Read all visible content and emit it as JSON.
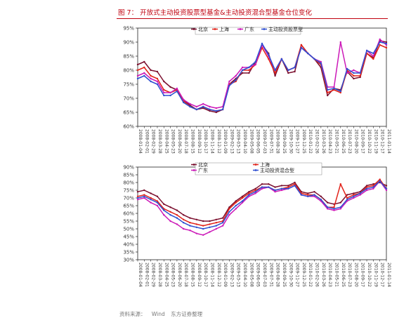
{
  "figure": {
    "title": "图 7：  开放式主动投资股票型基金&主动投资混合型基金仓位变化",
    "source_label": "资料来源：",
    "source_items": [
      "Wind",
      "东方证券整理"
    ]
  },
  "chart_data": [
    {
      "type": "line",
      "title": "",
      "ylim": [
        60,
        95
      ],
      "y_ticks": [
        "95%",
        "90%",
        "85%",
        "80%",
        "75%",
        "70%",
        "65%",
        "60%"
      ],
      "x_ticks": [
        "2008-01-04",
        "2008-02-01",
        "2008-02-29",
        "2008-03-28",
        "2008-04-25",
        "2008-05-23",
        "2008-06-20",
        "2008-07-18",
        "2008-08-15",
        "2008-09-12",
        "2008-10-17",
        "2008-11-14",
        "2008-12-12",
        "2009-01-09",
        "2009-02-13",
        "2009-03-13",
        "2009-04-10",
        "2009-05-08",
        "2009-06-05",
        "2009-07-03",
        "2009-07-31",
        "2009-08-28",
        "2009-09-25",
        "2009-10-30",
        "2009-11-27",
        "2009-12-25",
        "2010-01-22",
        "2010-02-26",
        "2010-03-26",
        "2010-04-23",
        "2010-05-21",
        "2010-06-25",
        "2010-07-23",
        "2010-08-20",
        "2010-09-17",
        "2010-10-22",
        "2010-11-19",
        "2010-12-17",
        "2011-01-14"
      ],
      "grid": false,
      "legend_position": "top",
      "series": [
        {
          "name": "北京",
          "color": "#7b0f2e",
          "values": [
            82,
            83,
            80,
            79.5,
            76,
            74,
            73,
            69.5,
            67.5,
            66,
            66.5,
            65.5,
            65,
            66,
            75,
            77,
            79,
            79,
            83,
            89,
            86,
            78,
            84,
            79,
            79.5,
            89,
            86,
            84,
            81,
            71,
            73.5,
            73,
            79.5,
            77,
            77.5,
            86,
            84.5,
            90.5,
            90
          ]
        },
        {
          "name": "上海",
          "color": "#e2231a",
          "values": [
            80,
            81,
            78,
            77,
            73,
            72,
            73,
            69,
            67,
            66,
            67,
            66,
            65.5,
            66,
            75,
            76,
            80,
            80,
            82,
            88,
            84,
            79,
            84,
            80,
            81,
            89,
            86,
            84,
            82,
            72,
            73,
            72,
            80,
            78,
            78,
            86,
            84,
            89,
            88
          ]
        },
        {
          "name": "广东",
          "color": "#cc19b8",
          "values": [
            78,
            79,
            77,
            76,
            72,
            72,
            73.5,
            69.5,
            68,
            67,
            68,
            67,
            66.5,
            67,
            76,
            78,
            81,
            81,
            82,
            89,
            85,
            80,
            84,
            80,
            81,
            88,
            86,
            84,
            83,
            74,
            74,
            90,
            79,
            80,
            79,
            87,
            85,
            91,
            89
          ]
        },
        {
          "name": "主动投资股票型",
          "color": "#2e4fd1",
          "values": [
            77,
            78,
            76,
            75,
            71,
            71,
            72.5,
            68.5,
            67,
            66,
            67,
            66,
            65.5,
            66,
            74.5,
            76.5,
            80,
            81,
            83,
            89.5,
            85.5,
            80,
            84,
            80,
            81,
            88,
            86,
            84,
            82.5,
            73,
            73.5,
            72.5,
            80.5,
            79,
            79,
            87,
            86,
            90,
            89.5
          ]
        }
      ]
    },
    {
      "type": "line",
      "title": "",
      "ylim": [
        30,
        90
      ],
      "y_ticks": [
        "90%",
        "85%",
        "80%",
        "75%",
        "70%",
        "65%",
        "60%",
        "55%",
        "50%",
        "45%",
        "40%",
        "35%",
        "30%"
      ],
      "x_ticks": [
        "2008-01-04",
        "2008-02-01",
        "2008-02-29",
        "2008-03-28",
        "2008-04-25",
        "2008-05-23",
        "2008-06-20",
        "2008-07-18",
        "2008-08-15",
        "2008-09-12",
        "2008-10-17",
        "2008-11-14",
        "2008-12-12",
        "2009-01-09",
        "2009-02-13",
        "2009-03-13",
        "2009-04-10",
        "2009-05-08",
        "2009-06-05",
        "2009-07-03",
        "2009-07-31",
        "2009-08-28",
        "2009-09-25",
        "2009-10-30",
        "2009-11-27",
        "2009-12-25",
        "2010-01-22",
        "2010-02-26",
        "2010-03-26",
        "2010-04-23",
        "2010-05-21",
        "2010-06-25",
        "2010-07-23",
        "2010-08-20",
        "2010-09-17",
        "2010-10-22",
        "2010-11-19",
        "2010-12-17",
        "2011-01-14"
      ],
      "grid": false,
      "legend_position": "top",
      "series": [
        {
          "name": "北京",
          "color": "#7b0f2e",
          "values": [
            74,
            75,
            73,
            71,
            66,
            64,
            62,
            59,
            57,
            56,
            55,
            55,
            56,
            57,
            64,
            68,
            71,
            74,
            76,
            79,
            79,
            77,
            78,
            78,
            80,
            74,
            73,
            74,
            71,
            67,
            66,
            67,
            72,
            73,
            74,
            78,
            79,
            80,
            78
          ]
        },
        {
          "name": "上海",
          "color": "#e2231a",
          "values": [
            71,
            72,
            70,
            68,
            63,
            61,
            59,
            56,
            54,
            53,
            52,
            53,
            54,
            55,
            63,
            67,
            70,
            73,
            75,
            77,
            77,
            75,
            76,
            77,
            79,
            73,
            72,
            72,
            69,
            64,
            64,
            79,
            70,
            72,
            73,
            77,
            78,
            82,
            76
          ]
        },
        {
          "name": "广东",
          "color": "#cc19b8",
          "values": [
            69,
            70,
            67,
            65,
            59,
            55,
            53,
            50,
            49,
            47,
            46,
            48,
            50,
            52,
            59,
            63,
            67,
            71,
            73,
            76,
            77,
            74,
            75,
            76,
            78,
            72,
            71,
            71,
            68,
            63,
            62,
            63,
            68,
            70,
            72,
            75,
            76,
            81,
            75
          ]
        },
        {
          "name": "主动投资混合型",
          "color": "#2e4fd1",
          "values": [
            70,
            71,
            69,
            67,
            62,
            59,
            57,
            54,
            52,
            51,
            50,
            51,
            52,
            54,
            61,
            65,
            68,
            72,
            74,
            77,
            77,
            75,
            76,
            76,
            78,
            72,
            71,
            72,
            69,
            64,
            63,
            64,
            69,
            71,
            73,
            76,
            77,
            81,
            76
          ]
        }
      ]
    }
  ]
}
